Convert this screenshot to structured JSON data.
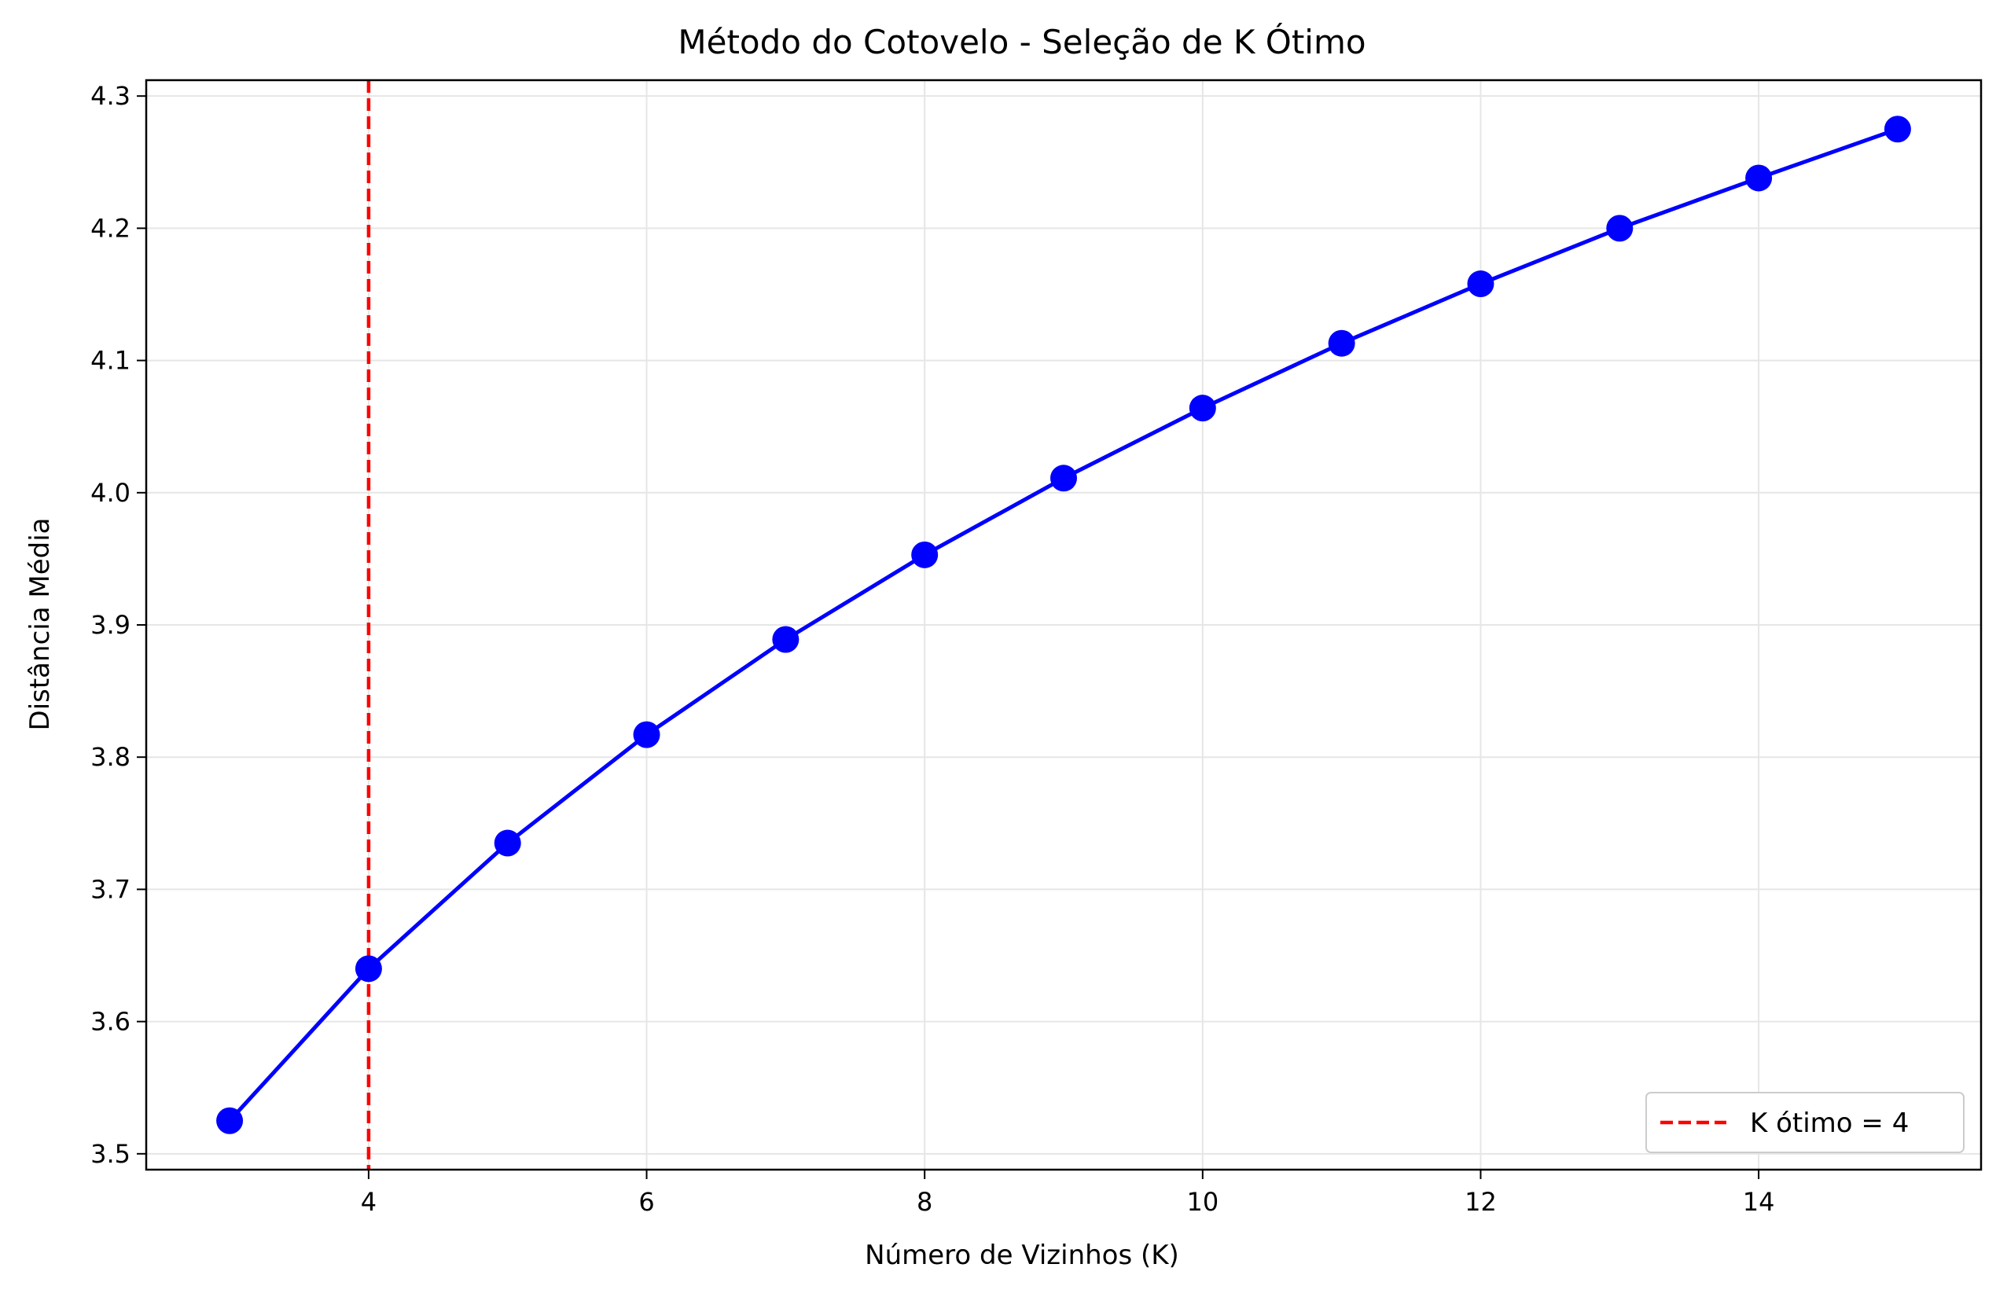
{
  "chart_data": {
    "type": "line",
    "title": "Método do Cotovelo - Seleção de K Ótimo",
    "xlabel": "Número de Vizinhos (K)",
    "ylabel": "Distância Média",
    "xlim": [
      2.4,
      15.6
    ],
    "ylim": [
      3.488,
      4.312
    ],
    "xticks": [
      4,
      6,
      8,
      10,
      12,
      14
    ],
    "xtick_labels": [
      "4",
      "6",
      "8",
      "10",
      "12",
      "14"
    ],
    "yticks": [
      3.5,
      3.6,
      3.7,
      3.8,
      3.9,
      4.0,
      4.1,
      4.2,
      4.3
    ],
    "ytick_labels": [
      "3.5",
      "3.6",
      "3.7",
      "3.8",
      "3.9",
      "4.0",
      "4.1",
      "4.2",
      "4.3"
    ],
    "grid": true,
    "legend_position": "lower-right",
    "series": [
      {
        "color": "#0000ff",
        "marker": "circle",
        "x": [
          3,
          4,
          5,
          6,
          7,
          8,
          9,
          10,
          11,
          12,
          13,
          14,
          15
        ],
        "y": [
          3.525,
          3.64,
          3.735,
          3.817,
          3.889,
          3.953,
          4.011,
          4.064,
          4.113,
          4.158,
          4.2,
          4.238,
          4.275
        ]
      }
    ],
    "reference_lines": [
      {
        "orientation": "vertical",
        "x": 4,
        "color": "#ff0000",
        "style": "dashed",
        "label": "K ótimo = 4"
      }
    ]
  }
}
